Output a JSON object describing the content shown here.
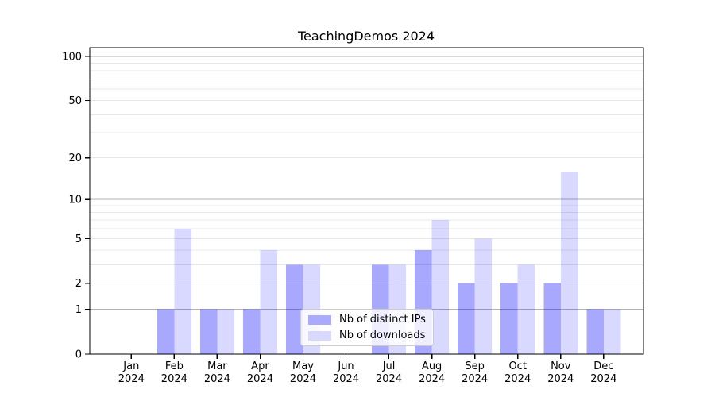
{
  "chart_data": {
    "type": "bar",
    "title": "TeachingDemos 2024",
    "year_label": "2024",
    "months": [
      "Jan",
      "Feb",
      "Mar",
      "Apr",
      "May",
      "Jun",
      "Jul",
      "Aug",
      "Sep",
      "Oct",
      "Nov",
      "Dec"
    ],
    "categories": [
      "Jan 2024",
      "Feb 2024",
      "Mar 2024",
      "Apr 2024",
      "May 2024",
      "Jun 2024",
      "Jul 2024",
      "Aug 2024",
      "Sep 2024",
      "Oct 2024",
      "Nov 2024",
      "Dec 2024"
    ],
    "series": [
      {
        "name": "Nb of distinct IPs",
        "color": "rgba(0,0,255,0.34)",
        "solid_color": "#aaaaff",
        "values": [
          0,
          1,
          1,
          1,
          3,
          0,
          3,
          4,
          2,
          2,
          2,
          1
        ]
      },
      {
        "name": "Nb of downloads",
        "color": "rgba(0,0,255,0.15)",
        "solid_color": "#d9d9ff",
        "values": [
          0,
          6,
          1,
          4,
          3,
          0,
          3,
          7,
          5,
          3,
          16,
          1
        ]
      }
    ],
    "y_axis": {
      "scale": "log1p",
      "tick_labels": [
        0,
        1,
        2,
        5,
        10,
        20,
        50,
        100
      ],
      "minor_gridlines": [
        2,
        3,
        4,
        5,
        6,
        7,
        8,
        9,
        20,
        30,
        40,
        50,
        60,
        70,
        80,
        90
      ],
      "major_gridlines": [
        1,
        10,
        100
      ],
      "range": [
        0,
        100
      ]
    },
    "grid": {
      "minor_color": "#e8e8e8",
      "major_color": "#b3b3b3"
    },
    "axis_color": "#000000",
    "legend_position": "lower center"
  }
}
